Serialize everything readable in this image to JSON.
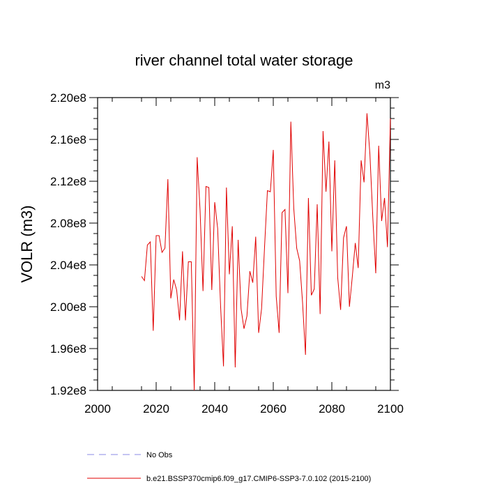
{
  "chart_data": {
    "type": "line",
    "title": "river channel total water storage",
    "ylabel": "VOLR  (m3)",
    "units_label": "m3",
    "xlim": [
      2000,
      2100
    ],
    "ylim": [
      192000000,
      220000000
    ],
    "x_ticks": [
      2000,
      2020,
      2040,
      2060,
      2080,
      2100
    ],
    "x_tick_labels": [
      "2000",
      "2020",
      "2040",
      "2060",
      "2080",
      "2100"
    ],
    "y_ticks": [
      192000000,
      196000000,
      200000000,
      204000000,
      208000000,
      212000000,
      216000000,
      220000000
    ],
    "y_tick_labels": [
      "1.92e8",
      "1.96e8",
      "2.00e8",
      "2.04e8",
      "2.08e8",
      "2.12e8",
      "2.16e8",
      "2.20e8"
    ],
    "series": [
      {
        "name": "b.e21.BSSP370cmip6.f09_g17.CMIP6-SSP3-7.0.102 (2015-2100)",
        "color": "#e00000",
        "x": [
          2015,
          2016,
          2017,
          2018,
          2019,
          2020,
          2021,
          2022,
          2023,
          2024,
          2025,
          2026,
          2027,
          2028,
          2029,
          2030,
          2031,
          2032,
          2033,
          2034,
          2035,
          2036,
          2037,
          2038,
          2039,
          2040,
          2041,
          2042,
          2043,
          2044,
          2045,
          2046,
          2047,
          2048,
          2049,
          2050,
          2051,
          2052,
          2053,
          2054,
          2055,
          2056,
          2057,
          2058,
          2059,
          2060,
          2061,
          2062,
          2063,
          2064,
          2065,
          2066,
          2067,
          2068,
          2069,
          2070,
          2071,
          2072,
          2073,
          2074,
          2075,
          2076,
          2077,
          2078,
          2079,
          2080,
          2081,
          2082,
          2083,
          2084,
          2085,
          2086,
          2087,
          2088,
          2089,
          2090,
          2091,
          2092,
          2093,
          2094,
          2095,
          2096,
          2097,
          2098,
          2099,
          2100
        ],
        "values": [
          202900000,
          202500000,
          205900000,
          206200000,
          197700000,
          206800000,
          206800000,
          205200000,
          205600000,
          212200000,
          200800000,
          202600000,
          201600000,
          198700000,
          205300000,
          198700000,
          204300000,
          204300000,
          192000000,
          214300000,
          209200000,
          201500000,
          211500000,
          211400000,
          201600000,
          210000000,
          207500000,
          200100000,
          194300000,
          211400000,
          203100000,
          207700000,
          194200000,
          206400000,
          199800000,
          197900000,
          199100000,
          203400000,
          202300000,
          206700000,
          197500000,
          199800000,
          205600000,
          211100000,
          211000000,
          215000000,
          201000000,
          197500000,
          209000000,
          209300000,
          201300000,
          217700000,
          209400000,
          205600000,
          204400000,
          200400000,
          195400000,
          210400000,
          201100000,
          201700000,
          209800000,
          199300000,
          216800000,
          211000000,
          215800000,
          205300000,
          214000000,
          202800000,
          199700000,
          206600000,
          207700000,
          200000000,
          202900000,
          206100000,
          203700000,
          214000000,
          211900000,
          218500000,
          214600000,
          208500000,
          203200000,
          215400000,
          208200000,
          210400000,
          205700000,
          218000000
        ]
      }
    ],
    "legend": [
      {
        "label": "No Obs",
        "style": "dashed",
        "color": "#8a8ae6"
      },
      {
        "label": "b.e21.BSSP370cmip6.f09_g17.CMIP6-SSP3-7.0.102 (2015-2100)",
        "style": "solid",
        "color": "#e00000"
      }
    ],
    "grid": false,
    "legend_position": "bottom"
  }
}
